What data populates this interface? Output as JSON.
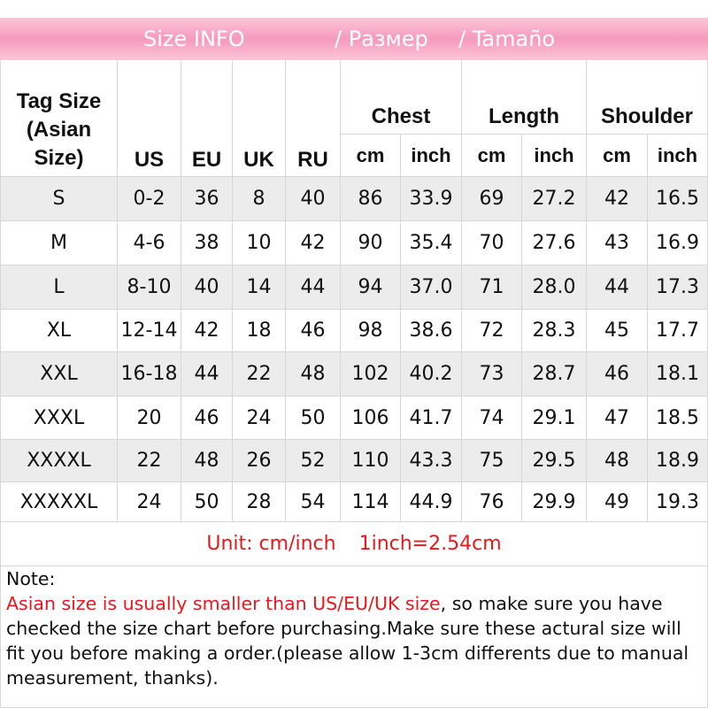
{
  "header": {
    "title": [
      "Size INFO",
      "/ Размер",
      "/ Tamaño"
    ]
  },
  "table": {
    "tag_header": [
      "Tag Size",
      "(Asian",
      "Size)"
    ],
    "columns": [
      "US",
      "EU",
      "UK",
      "RU"
    ],
    "groups": [
      "Chest",
      "Length",
      "Shoulder"
    ],
    "sub_columns": [
      "cm",
      "inch"
    ],
    "rows": [
      [
        "S",
        "0-2",
        "36",
        "8",
        "40",
        "86",
        "33.9",
        "69",
        "27.2",
        "42",
        "16.5"
      ],
      [
        "M",
        "4-6",
        "38",
        "10",
        "42",
        "90",
        "35.4",
        "70",
        "27.6",
        "43",
        "16.9"
      ],
      [
        "L",
        "8-10",
        "40",
        "14",
        "44",
        "94",
        "37.0",
        "71",
        "28.0",
        "44",
        "17.3"
      ],
      [
        "XL",
        "12-14",
        "42",
        "18",
        "46",
        "98",
        "38.6",
        "72",
        "28.3",
        "45",
        "17.7"
      ],
      [
        "XXL",
        "16-18",
        "44",
        "22",
        "48",
        "102",
        "40.2",
        "73",
        "28.7",
        "46",
        "18.1"
      ],
      [
        "XXXL",
        "20",
        "46",
        "24",
        "50",
        "106",
        "41.7",
        "74",
        "29.1",
        "47",
        "18.5"
      ],
      [
        "XXXXL",
        "22",
        "48",
        "26",
        "52",
        "110",
        "43.3",
        "75",
        "29.5",
        "48",
        "18.9"
      ],
      [
        "XXXXXL",
        "24",
        "50",
        "28",
        "54",
        "114",
        "44.9",
        "76",
        "29.9",
        "49",
        "19.3"
      ]
    ]
  },
  "unit": [
    "Unit: cm/inch",
    "1inch=2.54cm"
  ],
  "note": {
    "label": "Note:",
    "highlight": "Asian size is usually smaller than US/EU/UK size",
    "text": ", so make sure you have checked the size chart before purchasing.Make sure these actural size will fit you before making a order.(please allow 1-3cm differents due to manual measurement, thanks)."
  }
}
